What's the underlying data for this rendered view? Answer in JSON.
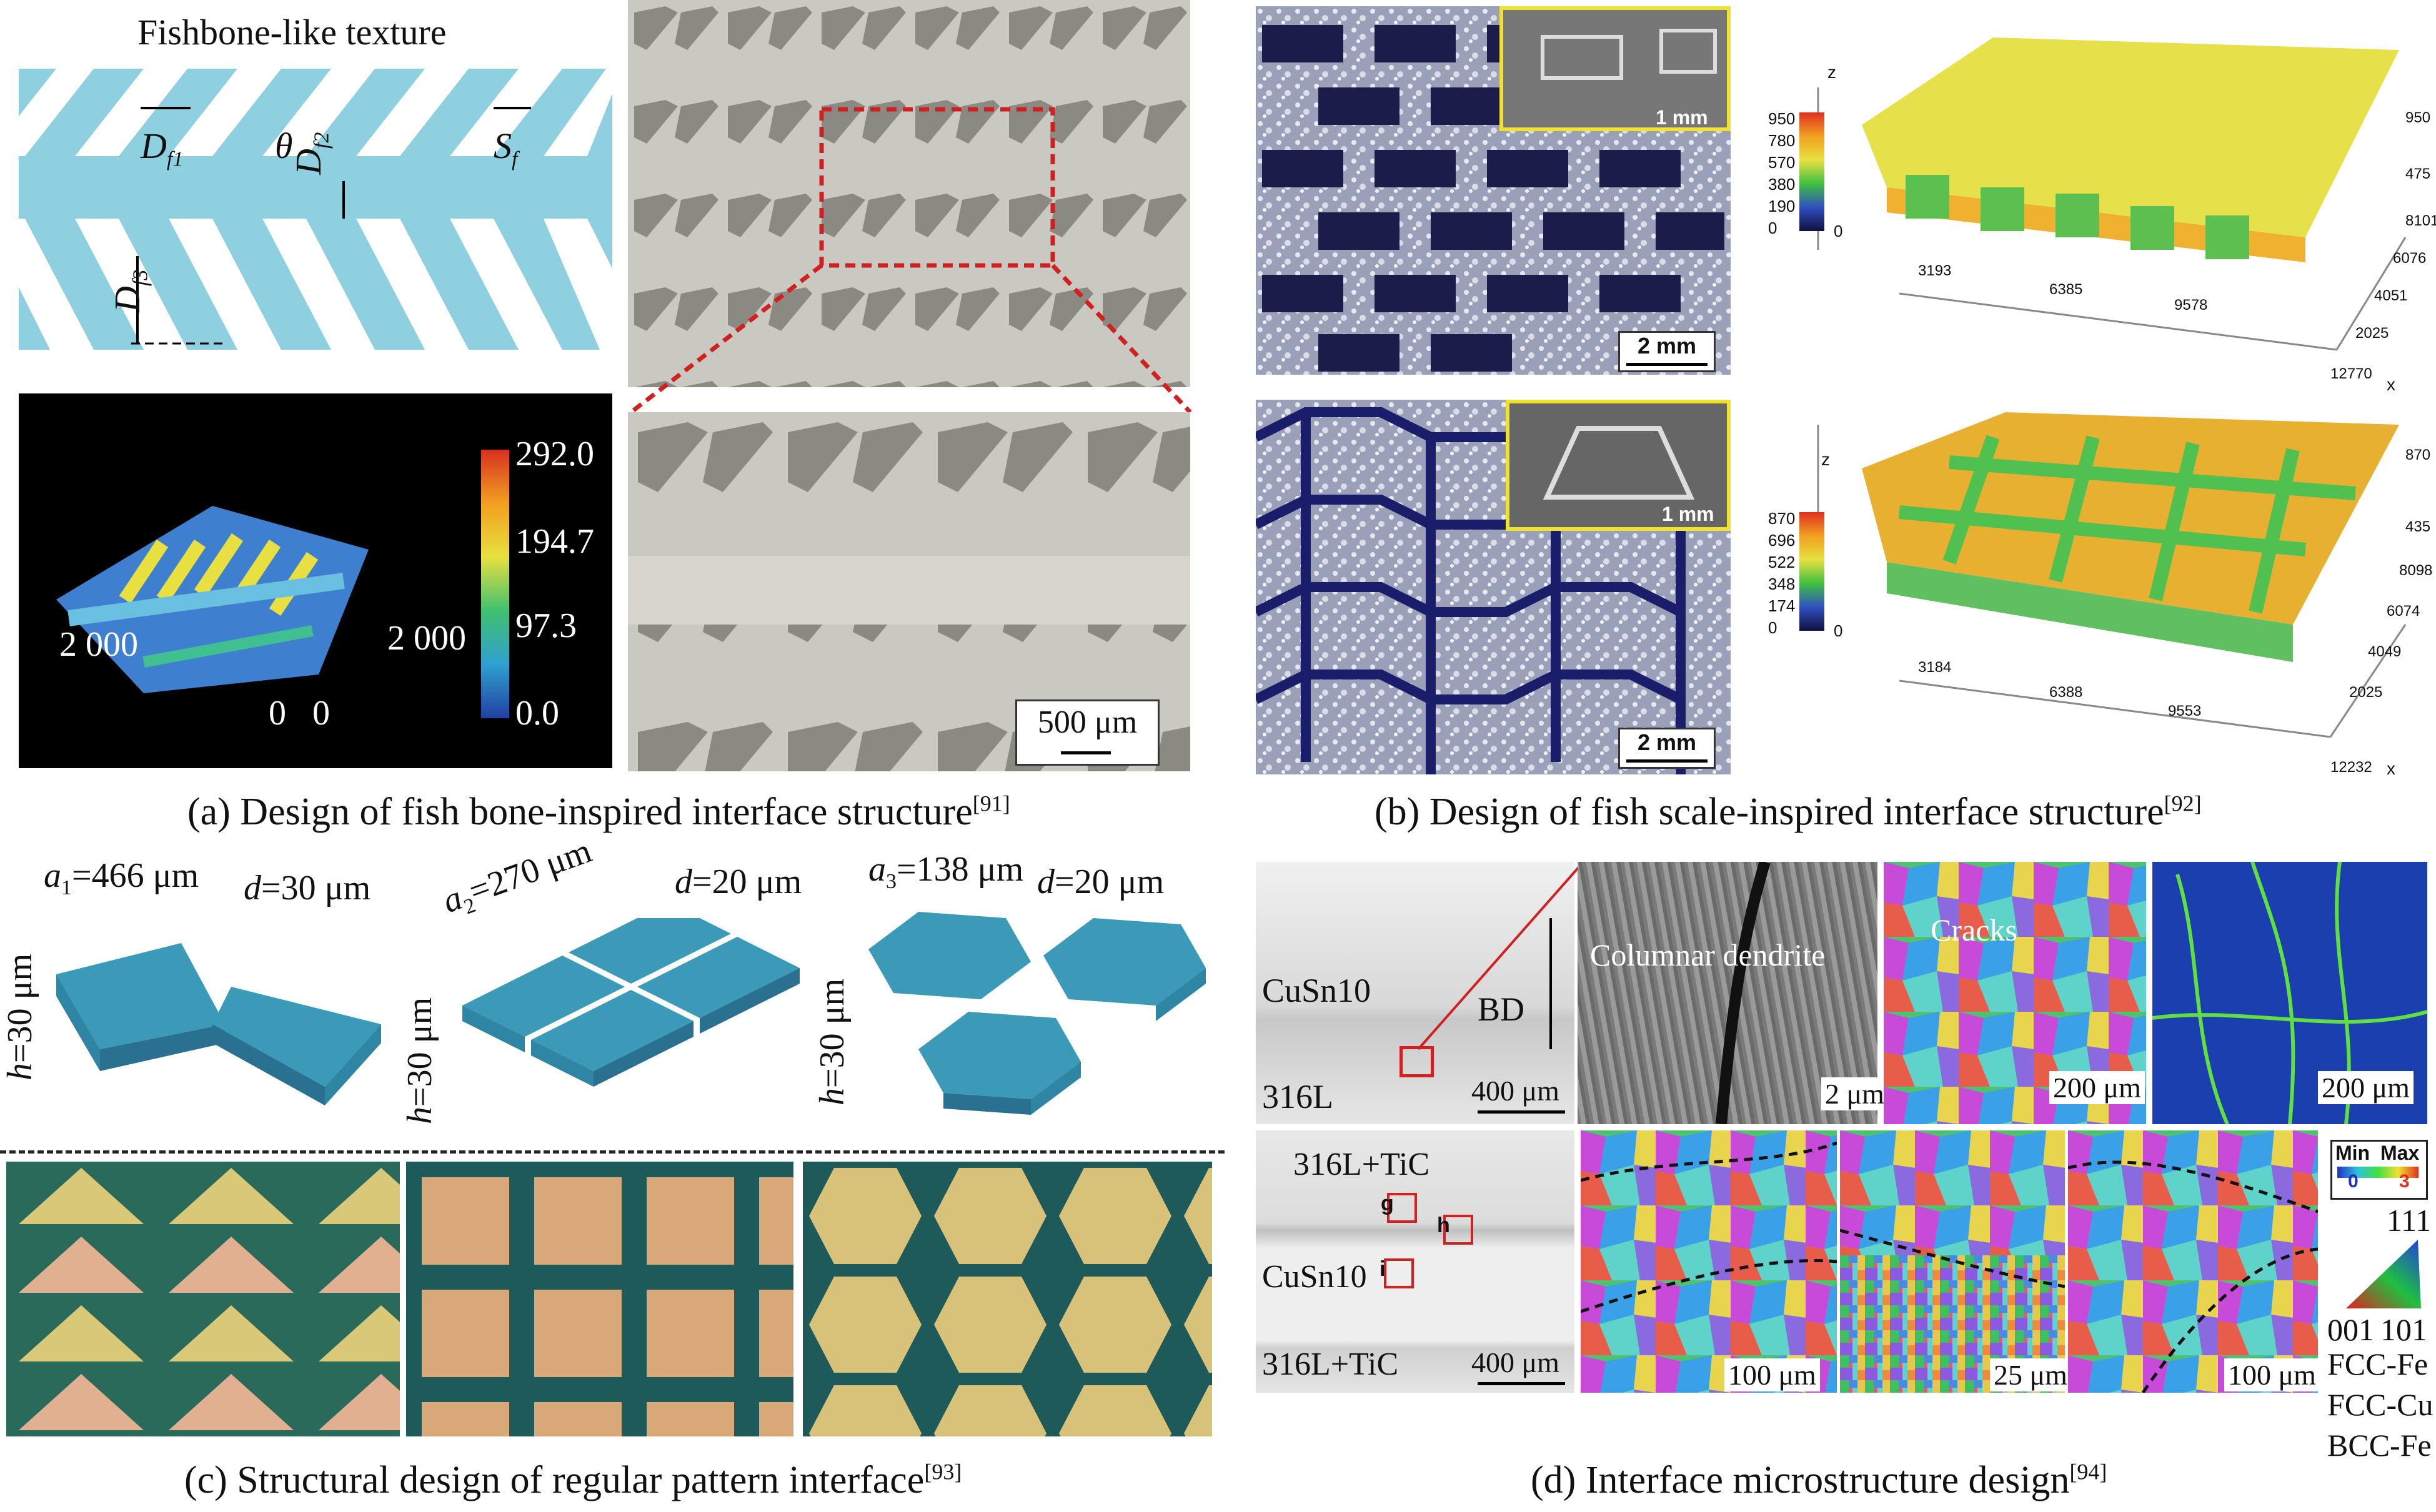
{
  "panel_a": {
    "title": "Fishbone-like texture",
    "dim_df1": "D",
    "dim_df1_sub": "f1",
    "dim_theta": "θ",
    "dim_sf": "S",
    "dim_sf_sub": "f",
    "dim_df2": "D",
    "dim_df2_sub": "f2",
    "dim_df3": "D",
    "dim_df3_sub": "f3",
    "colorbar_ticks": [
      "292.0",
      "194.7",
      "97.3",
      "0.0"
    ],
    "axis_left": "2 000",
    "axis_right": "2 000",
    "axis_zero1": "0",
    "axis_zero2": "0",
    "scalebar": "500 μm",
    "caption": "(a) Design of fish bone-inspired interface structure",
    "caption_ref": "[91]"
  },
  "panel_b": {
    "inset_top_scale": "1 mm",
    "sem_top_scale": "2 mm",
    "cb_top_ticks": [
      "950",
      "780",
      "570",
      "380",
      "190",
      "0"
    ],
    "cb_top_zero": "0",
    "z_top": "z",
    "x_label": "x",
    "top_right_ticks": [
      "950",
      "475",
      "8101",
      "6076",
      "4051",
      "2025",
      "12770"
    ],
    "top_front_ticks": [
      "3193",
      "6385",
      "9578"
    ],
    "inset_bot_scale": "1 mm",
    "sem_bot_scale": "2 mm",
    "cb_bot_ticks": [
      "870",
      "696",
      "522",
      "348",
      "174",
      "0"
    ],
    "cb_bot_zero": "0",
    "z_bot": "z",
    "bot_right_ticks": [
      "870",
      "435",
      "8098",
      "6074",
      "4049",
      "2025",
      "12232"
    ],
    "bot_front_ticks": [
      "3184",
      "6388",
      "9553"
    ],
    "caption": "(b) Design of fish scale-inspired interface structure",
    "caption_ref": "[92]"
  },
  "panel_c": {
    "tri_a": "a",
    "tri_a_sub": "1",
    "tri_a_val": "=466 μm",
    "tri_d": "d",
    "tri_d_val": "=30 μm",
    "tri_h": "h",
    "tri_h_val": "=30 μm",
    "sq_a": "a",
    "sq_a_sub": "2",
    "sq_a_val": "=270 μm",
    "sq_d": "d",
    "sq_d_val": "=20 μm",
    "sq_h": "h",
    "sq_h_val": "=30 μm",
    "hex_a": "a",
    "hex_a_sub": "3",
    "hex_a_val": "=138 μm",
    "hex_d": "d",
    "hex_d_val": "=20 μm",
    "hex_h": "h",
    "hex_h_val": "=30 μm",
    "caption": "(c) Structural design of regular pattern interface",
    "caption_ref": "[93]"
  },
  "panel_d": {
    "top_mat1": "CuSn10",
    "top_mat2": "316L",
    "bd": "BD",
    "scale_om_top": "400 μm",
    "columnar": "Columnar dendrite",
    "scale_sem": "2 μm",
    "cracks": "Cracks",
    "scale_ebsd1": "200 μm",
    "scale_ebsd2": "200 μm",
    "bot_mat1": "316L+TiC",
    "bot_mat2": "CuSn10",
    "bot_mat3": "316L+TiC",
    "box_g": "g",
    "box_h": "h",
    "box_i": "i",
    "scale_om_bot": "400 μm",
    "scale_e1": "100 μm",
    "scale_e2": "25 μm",
    "scale_e3": "100 μm",
    "kam_min": "Min",
    "kam_max": "Max",
    "kam_0": "0",
    "kam_3": "3",
    "ipf_111": "111",
    "ipf_001": "001",
    "ipf_101": "101",
    "phase1": "FCC-Fe",
    "phase2": "FCC-Cu",
    "phase3": "BCC-Fe",
    "caption": "(d) Interface microstructure design",
    "caption_ref": "[94]"
  }
}
